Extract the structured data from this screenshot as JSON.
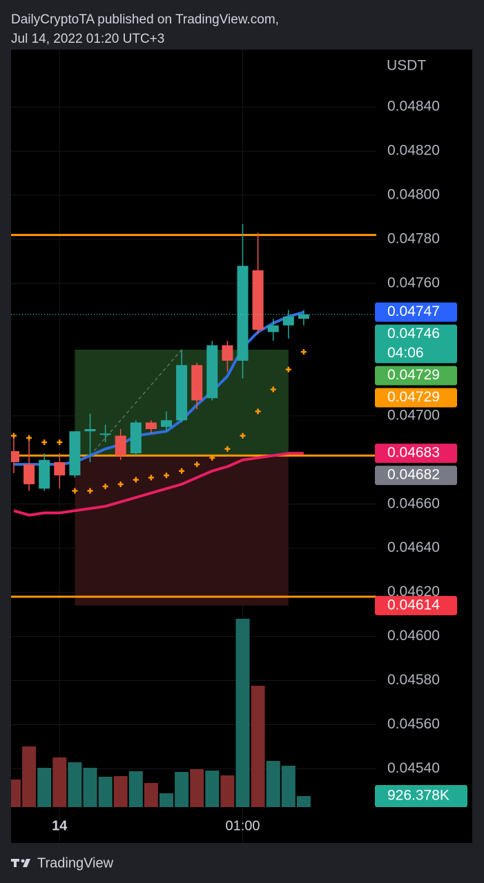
{
  "header": {
    "line1": "DailyCryptoTA published on TradingView.com,",
    "line2": "Jul 14, 2022 01:20 UTC+3"
  },
  "chart_data": {
    "type": "candlestick",
    "unit_label": "USDT",
    "categories": [
      null,
      null,
      null,
      "14",
      null,
      null,
      null,
      null,
      null,
      null,
      null,
      null,
      null,
      null,
      null,
      "01:00",
      null,
      null,
      null,
      null
    ],
    "open": [
      0.04684,
      0.04678,
      0.04667,
      0.04679,
      0.04673,
      0.04693,
      0.04692,
      0.04691,
      0.04683,
      0.04697,
      0.04695,
      0.04698,
      0.04723,
      0.04708,
      0.04732,
      0.04725,
      0.04766,
      0.04738,
      0.04741,
      0.04744
    ],
    "high": [
      0.04692,
      0.0469,
      0.04683,
      0.04683,
      0.04693,
      0.04701,
      0.04696,
      0.04694,
      0.04698,
      0.04698,
      0.04702,
      0.0473,
      0.04724,
      0.04734,
      0.04734,
      0.04787,
      0.04783,
      0.04744,
      0.04748,
      0.04748
    ],
    "low": [
      0.04674,
      0.04666,
      0.04666,
      0.04667,
      0.04672,
      0.04679,
      0.04688,
      0.0468,
      0.04682,
      0.04692,
      0.04693,
      0.04697,
      0.04703,
      0.04707,
      0.0472,
      0.04717,
      0.04737,
      0.04734,
      0.04735,
      0.04741
    ],
    "close": [
      0.04679,
      0.04669,
      0.0468,
      0.04673,
      0.04693,
      0.04694,
      0.04692,
      0.04682,
      0.04697,
      0.04694,
      0.04698,
      0.04723,
      0.04707,
      0.04732,
      0.04725,
      0.04768,
      0.04739,
      0.04741,
      0.04745,
      0.04746
    ],
    "up_color": "#26a69a",
    "down_color": "#ef5350",
    "ylim": [
      0.04522,
      0.04866
    ],
    "yticks": [
      {
        "value": 0.0454,
        "label": "0.04540"
      },
      {
        "value": 0.0456,
        "label": "0.04560"
      },
      {
        "value": 0.0458,
        "label": "0.04580"
      },
      {
        "value": 0.046,
        "label": "0.04600"
      },
      {
        "value": 0.0462,
        "label": "0.04620"
      },
      {
        "value": 0.0464,
        "label": "0.04640"
      },
      {
        "value": 0.0466,
        "label": "0.04660"
      },
      {
        "value": 0.047,
        "label": "0.04700"
      },
      {
        "value": 0.0476,
        "label": "0.04760"
      },
      {
        "value": 0.0478,
        "label": "0.04780"
      },
      {
        "value": 0.048,
        "label": "0.04800"
      },
      {
        "value": 0.0482,
        "label": "0.04820"
      },
      {
        "value": 0.0484,
        "label": "0.04840"
      }
    ],
    "grid": true,
    "lines": [
      {
        "color": "#2e6fe0",
        "values": [
          0.04678,
          0.04678,
          0.04678,
          0.04678,
          0.04679,
          0.04682,
          0.04685,
          0.04687,
          0.04691,
          0.04692,
          0.04693,
          0.04698,
          0.04705,
          0.04711,
          0.04718,
          0.04731,
          0.04738,
          0.04742,
          0.04745,
          0.04747
        ]
      },
      {
        "color": "#e91e63",
        "values": [
          0.04657,
          0.04655,
          0.04656,
          0.04656,
          0.04657,
          0.04658,
          0.04659,
          0.04661,
          0.04663,
          0.04665,
          0.04667,
          0.04669,
          0.04672,
          0.04675,
          0.04677,
          0.0468,
          0.04681,
          0.04682,
          0.04683,
          0.04683
        ]
      }
    ],
    "sar": {
      "color": "#ff9800",
      "values": [
        0.04691,
        0.0469,
        0.04688,
        0.04688,
        0.04666,
        0.04666,
        0.04668,
        0.04669,
        0.04671,
        0.04672,
        0.04673,
        0.04675,
        0.04678,
        0.04681,
        0.04685,
        0.04691,
        0.04702,
        0.04712,
        0.04721,
        0.04729
      ]
    },
    "volume": {
      "values": [
        2316000,
        5095000,
        3300000,
        4169000,
        3764000,
        3300000,
        2548000,
        2606000,
        3011000,
        2027000,
        1158000,
        2953000,
        3185000,
        3069000,
        2663000,
        15807000,
        10190000,
        3879000,
        3474000,
        926378
      ],
      "last_label": "926.378K",
      "up_color": "#1d6a63",
      "down_color": "#7e2b2b",
      "label_color": "#22ab94"
    },
    "levels": [
      {
        "value": 0.04782,
        "color": "#ff9800"
      },
      {
        "value": 0.04682,
        "color": "#ff9800"
      },
      {
        "value": 0.04618,
        "color": "#ff9800"
      }
    ],
    "position": {
      "entry": 0.04682,
      "target": 0.0473,
      "stop": 0.04614,
      "profit_color": "#1b3a1c",
      "loss_color": "#2e1113"
    },
    "last_price_line_color": "#4fc3c9",
    "price_labels": [
      {
        "value": 0.04747,
        "label": "0.04747",
        "color": "#2962ff"
      },
      {
        "value": 0.04746,
        "label": "0.04746",
        "countdown": "04:06",
        "color": "#22ab94"
      },
      {
        "value": 0.04729,
        "label": "0.04729",
        "color": "#4caf50"
      },
      {
        "value": 0.04729,
        "label": "0.04729",
        "color": "#ff9800"
      },
      {
        "value": 0.04683,
        "label": "0.04683",
        "color": "#e91e63"
      },
      {
        "value": 0.04682,
        "label": "0.04682",
        "color": "#787b86"
      },
      {
        "value": 0.04614,
        "label": "0.04614",
        "color": "#f23645"
      }
    ]
  },
  "footer": {
    "brand": "TradingView"
  }
}
